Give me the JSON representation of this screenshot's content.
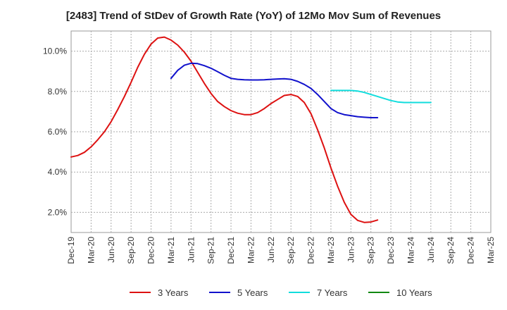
{
  "chart_data": {
    "type": "line",
    "title": "[2483]  Trend of StDev of Growth Rate (YoY) of 12Mo Mov Sum of Revenues",
    "xlabel": "",
    "ylabel": "",
    "x_ticks": [
      "Dec-19",
      "Mar-20",
      "Jun-20",
      "Sep-20",
      "Dec-20",
      "Mar-21",
      "Jun-21",
      "Sep-21",
      "Dec-21",
      "Mar-22",
      "Jun-22",
      "Sep-22",
      "Dec-22",
      "Mar-23",
      "Jun-23",
      "Sep-23",
      "Dec-23",
      "Mar-24",
      "Jun-24",
      "Sep-24",
      "Dec-24",
      "Mar-25"
    ],
    "y_ticks": [
      2.0,
      4.0,
      6.0,
      8.0,
      10.0
    ],
    "y_tick_labels": [
      "2.0%",
      "4.0%",
      "6.0%",
      "8.0%",
      "10.0%"
    ],
    "ylim": [
      1.0,
      11.0
    ],
    "grid": true,
    "legend_position": "bottom",
    "series": [
      {
        "name": "3 Years",
        "color": "#dd1111",
        "start_index": 0,
        "values": [
          4.75,
          4.82,
          4.98,
          5.25,
          5.6,
          6.0,
          6.5,
          7.1,
          7.75,
          8.45,
          9.2,
          9.85,
          10.35,
          10.65,
          10.7,
          10.55,
          10.3,
          9.95,
          9.5,
          8.95,
          8.4,
          7.9,
          7.5,
          7.25,
          7.05,
          6.92,
          6.85,
          6.85,
          6.95,
          7.15,
          7.4,
          7.6,
          7.8,
          7.85,
          7.75,
          7.45,
          6.9,
          6.1,
          5.2,
          4.2,
          3.3,
          2.5,
          1.9,
          1.6,
          1.5,
          1.52,
          1.62
        ]
      },
      {
        "name": "5 Years",
        "color": "#1111cc",
        "start_index": 15,
        "values": [
          8.65,
          9.05,
          9.3,
          9.4,
          9.38,
          9.28,
          9.15,
          8.98,
          8.8,
          8.65,
          8.6,
          8.58,
          8.57,
          8.57,
          8.58,
          8.6,
          8.62,
          8.63,
          8.6,
          8.5,
          8.35,
          8.15,
          7.85,
          7.5,
          7.15,
          6.95,
          6.85,
          6.8,
          6.75,
          6.72,
          6.7,
          6.7
        ]
      },
      {
        "name": "7 Years",
        "color": "#11dddd",
        "start_index": 39,
        "values": [
          8.05,
          8.05,
          8.05,
          8.05,
          8.02,
          7.95,
          7.85,
          7.75,
          7.65,
          7.55,
          7.48,
          7.45,
          7.45,
          7.45,
          7.45,
          7.45
        ]
      },
      {
        "name": "10 Years",
        "color": "#118811",
        "start_index": 0,
        "values": []
      }
    ]
  }
}
